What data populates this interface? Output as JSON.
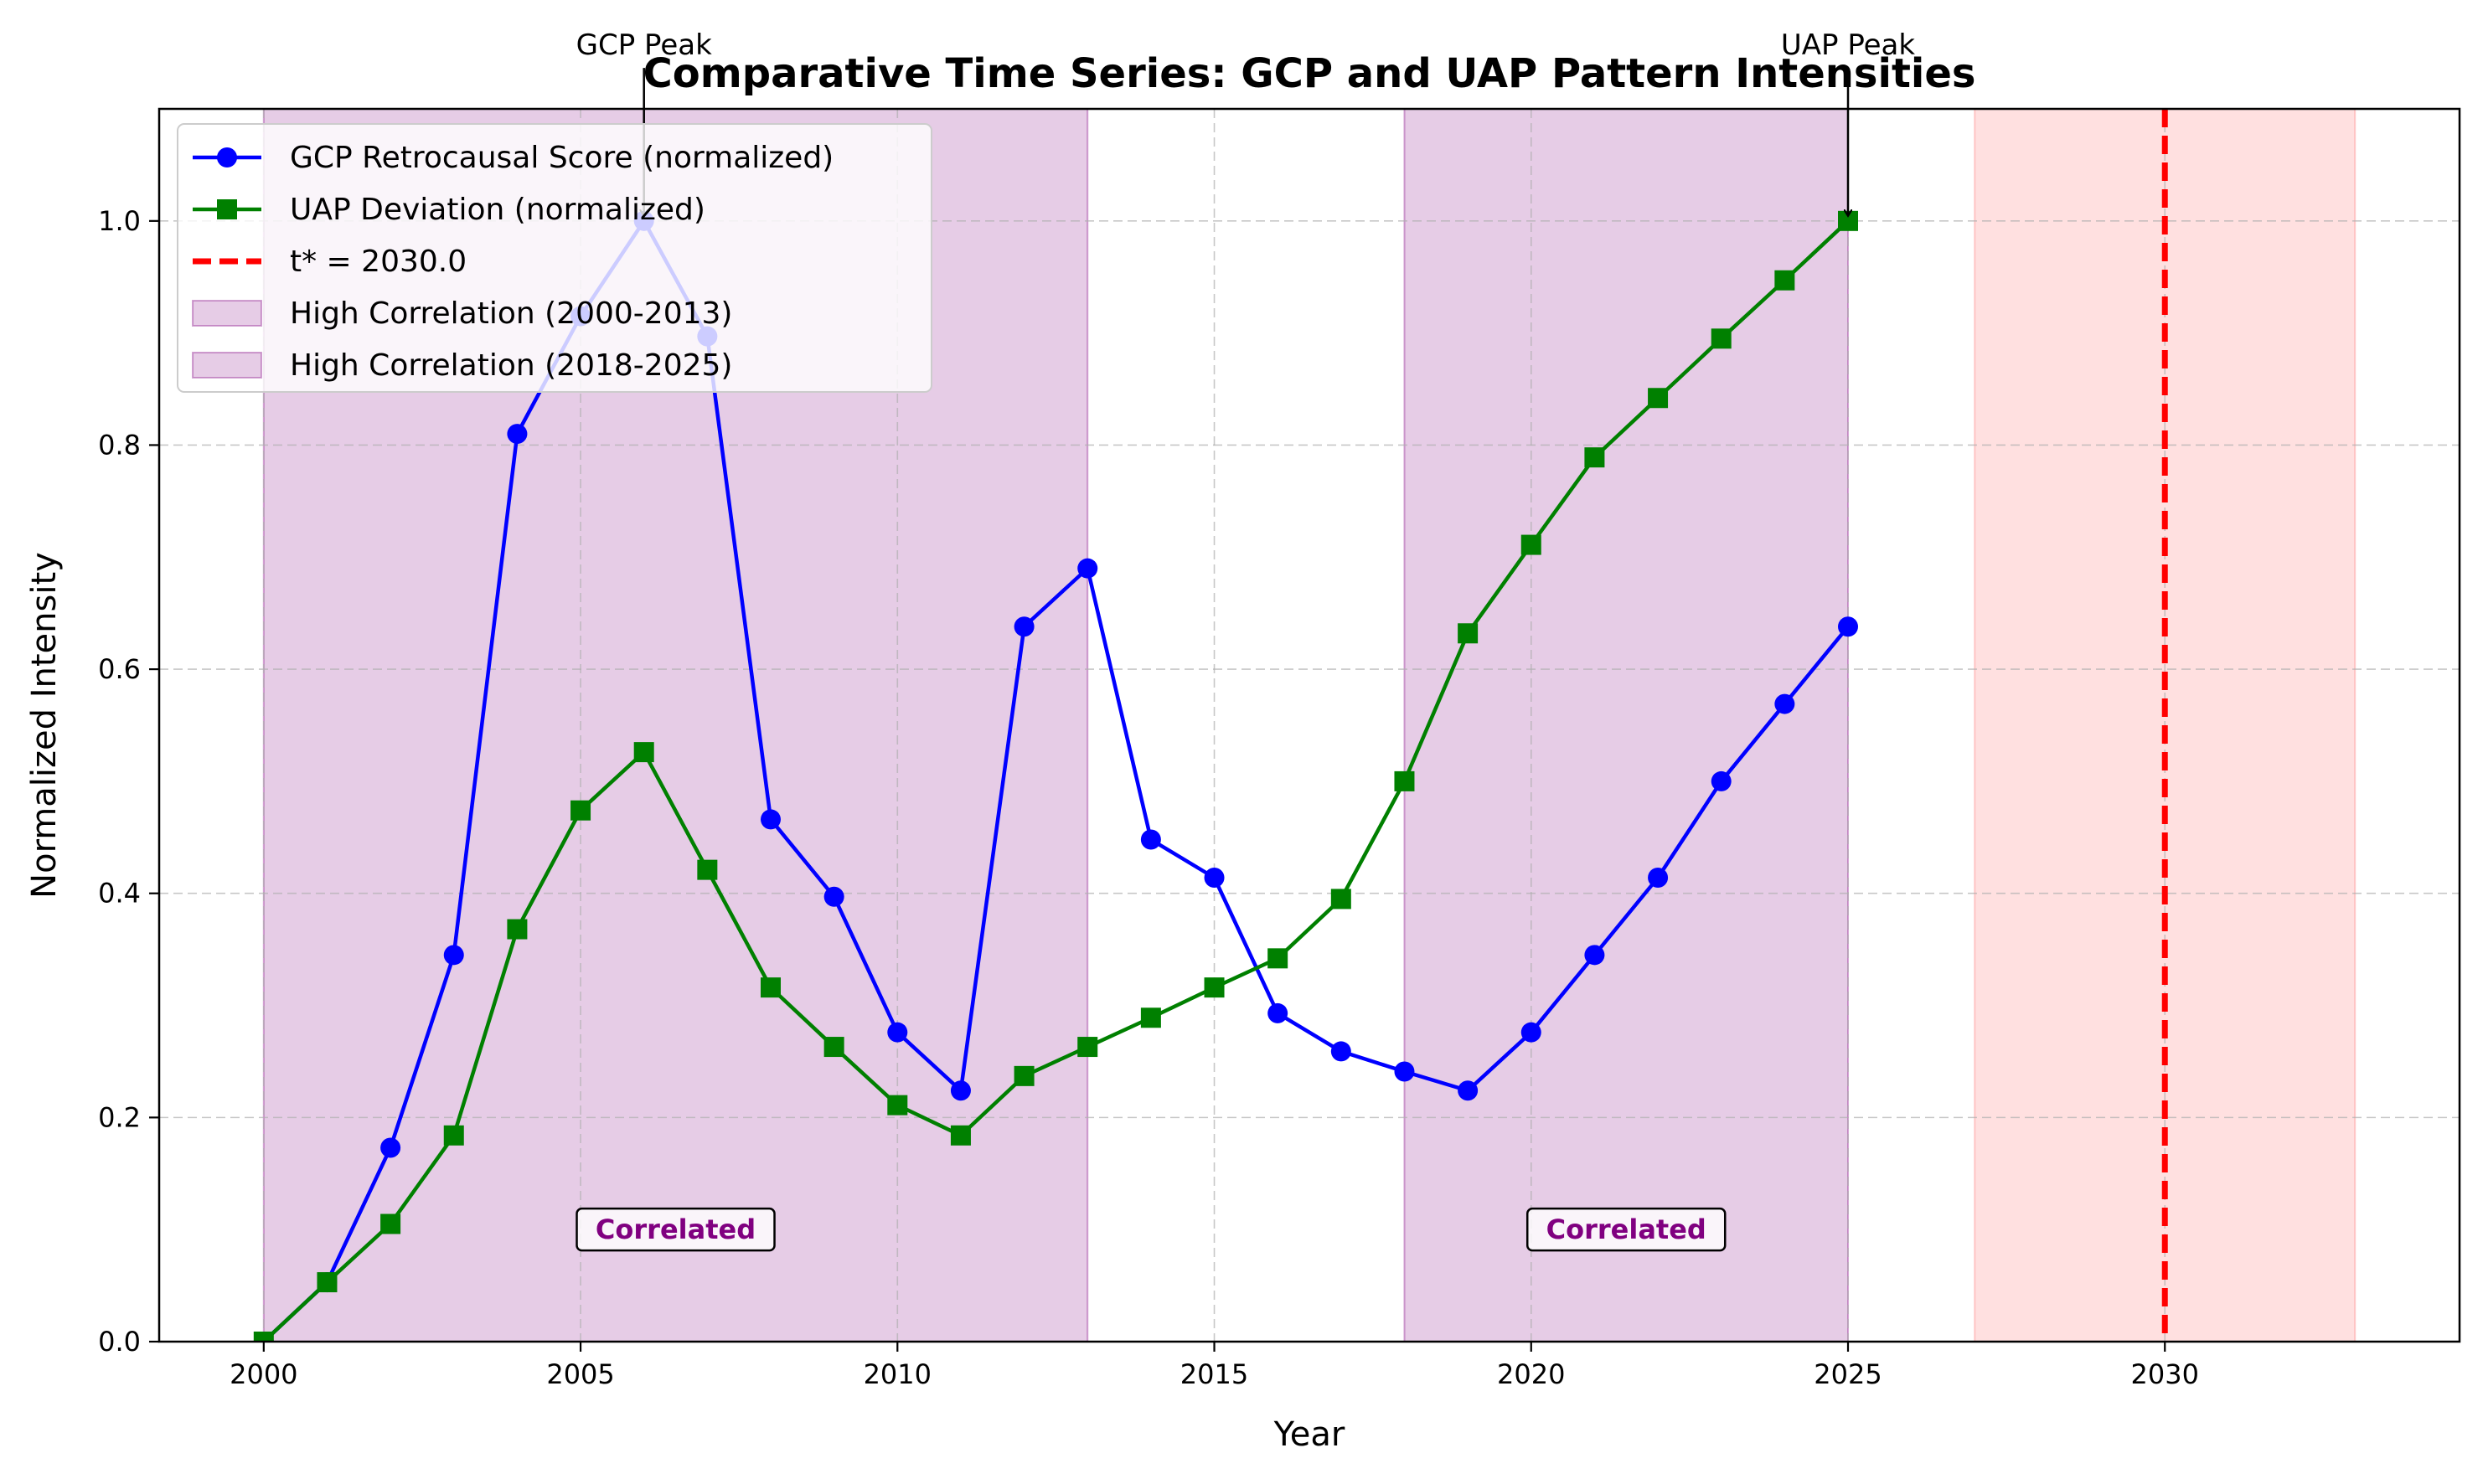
{
  "chart_data": {
    "type": "line",
    "title": "Comparative Time Series: GCP and UAP Pattern Intensities",
    "xlabel": "Year",
    "ylabel": "Normalized Intensity",
    "xlim": [
      1998.35,
      2034.65
    ],
    "ylim": [
      0.0,
      1.1
    ],
    "x_ticks": [
      2000,
      2005,
      2010,
      2015,
      2020,
      2025,
      2030
    ],
    "y_ticks": [
      0.0,
      0.2,
      0.4,
      0.6,
      0.8,
      1.0
    ],
    "x_tick_labels": [
      "2000",
      "2005",
      "2010",
      "2015",
      "2020",
      "2025",
      "2030"
    ],
    "y_tick_labels": [
      "0.0",
      "0.2",
      "0.4",
      "0.6",
      "0.8",
      "1.0"
    ],
    "grid": true,
    "legend_position": "upper-left",
    "x": [
      2000,
      2001,
      2002,
      2003,
      2004,
      2005,
      2006,
      2007,
      2008,
      2009,
      2010,
      2011,
      2012,
      2013,
      2014,
      2015,
      2016,
      2017,
      2018,
      2019,
      2020,
      2021,
      2022,
      2023,
      2024,
      2025
    ],
    "series": [
      {
        "name": "GCP Retrocausal Score (normalized)",
        "color": "#0000ff",
        "marker": "circle",
        "values": [
          0.0,
          0.053,
          0.173,
          0.345,
          0.81,
          0.915,
          1.0,
          0.897,
          0.466,
          0.397,
          0.276,
          0.224,
          0.638,
          0.69,
          0.448,
          0.414,
          0.293,
          0.259,
          0.241,
          0.224,
          0.276,
          0.345,
          0.414,
          0.5,
          0.569,
          0.638
        ]
      },
      {
        "name": "UAP Deviation (normalized)",
        "color": "#008000",
        "marker": "square",
        "values": [
          0.0,
          0.053,
          0.105,
          0.184,
          0.368,
          0.474,
          0.526,
          0.421,
          0.316,
          0.263,
          0.211,
          0.184,
          0.237,
          0.263,
          0.289,
          0.316,
          0.342,
          0.395,
          0.5,
          0.632,
          0.711,
          0.789,
          0.842,
          0.895,
          0.947,
          1.0
        ]
      }
    ],
    "vline": {
      "x": 2030.0,
      "color": "#ff0000",
      "label": "t* = 2030.0"
    },
    "regions": [
      {
        "start": 2000,
        "end": 2013,
        "color": "#800080",
        "label": "High Correlation (2000-2013)",
        "text": "Correlated"
      },
      {
        "start": 2018,
        "end": 2025,
        "color": "#800080",
        "label": "High Correlation (2018-2025)",
        "text": "Correlated"
      }
    ],
    "forecast_region": {
      "start": 2027,
      "end": 2033,
      "color": "#ff9999"
    },
    "annotations": [
      {
        "text": "GCP Peak",
        "x": 2006,
        "y": 1.0,
        "text_x": 2006,
        "text_y": 1.15
      },
      {
        "text": "UAP Peak",
        "x": 2025,
        "y": 1.0,
        "text_x": 2025,
        "text_y": 1.15
      }
    ],
    "region_text_y": 0.1
  }
}
